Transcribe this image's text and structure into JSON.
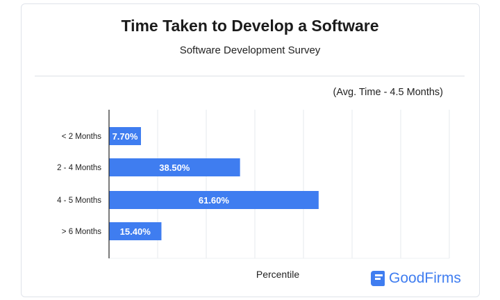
{
  "chart_data": {
    "type": "bar",
    "orientation": "horizontal",
    "title": "Time Taken to Develop a Software",
    "subtitle": "Software Development Survey",
    "annotation": "(Avg. Time - 4.5 Months)",
    "categories": [
      "< 2 Months",
      "2 - 4 Months",
      "4 - 5 Months",
      "> 6 Months"
    ],
    "values": [
      7.7,
      38.5,
      61.6,
      15.4
    ],
    "data_labels": [
      "7.70%",
      "38.50%",
      "61.60%",
      "15.40%"
    ],
    "xlabel": "Percentile",
    "ylabel": "",
    "xlim": [
      0,
      100
    ],
    "grid": true,
    "bar_color": "#3f7df0",
    "brand": "GoodFirms"
  }
}
